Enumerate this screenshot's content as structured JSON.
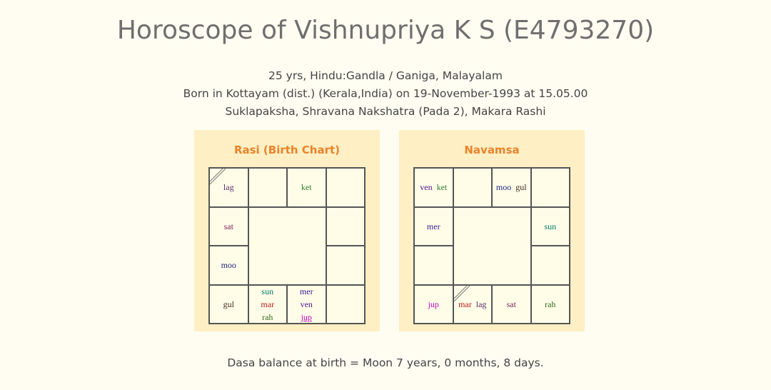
{
  "header": {
    "title": "Horoscope of  Vishnupriya K S (E4793270)",
    "line1": "25 yrs, Hindu:Gandla / Ganiga, Malayalam",
    "line2": "Born in Kottayam (dist.) (Kerala,India) on 19-November-1993 at 15.05.00",
    "line3": "Suklapaksha, Shravana Nakshatra (Pada 2), Makara Rashi"
  },
  "rasi": {
    "title": "Rasi (Birth Chart)",
    "cells": {
      "c00": [
        "lag"
      ],
      "c02": [
        "ket"
      ],
      "c10": [
        "sat"
      ],
      "c20": [
        "moo"
      ],
      "c30": [
        "gul"
      ],
      "c31": [
        "sun",
        "mar",
        "rah"
      ],
      "c32": [
        "mer",
        "ven",
        "jup"
      ]
    }
  },
  "navamsa": {
    "title": "Navamsa",
    "cells": {
      "c00": [
        "ven",
        "ket"
      ],
      "c02": [
        "moo",
        "gul"
      ],
      "c10": [
        "mer"
      ],
      "c13": [
        "sun"
      ],
      "c30": [
        "jup"
      ],
      "c31": [
        "mar",
        "lag"
      ],
      "c32": [
        "sat"
      ],
      "c33": [
        "rah"
      ]
    }
  },
  "footer": {
    "dasa": "Dasa balance at birth = Moon 7 years, 0 months, 8 days."
  },
  "colors": {
    "panel_bg": "#ffefc4",
    "panel_title": "#e8832a"
  }
}
